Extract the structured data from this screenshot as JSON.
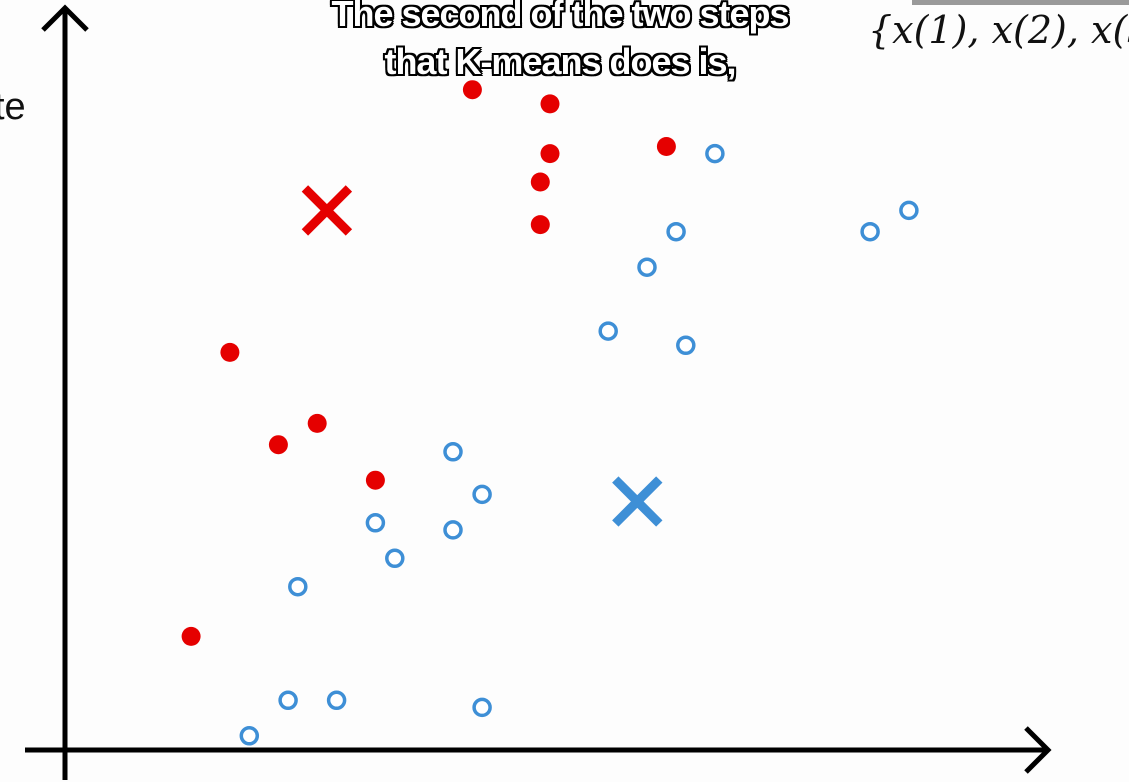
{
  "caption": {
    "line1": "The second of the two steps",
    "line2": "that K-means does is,"
  },
  "axis_label_fragment": "te",
  "formula_fragment": "{x(1), x(2), x(3",
  "colors": {
    "cluster_red": "#e50000",
    "cluster_blue": "#3e8fd6",
    "axis": "#000000"
  },
  "chart_data": {
    "type": "scatter",
    "title": "",
    "xlabel": "",
    "ylabel": "te",
    "xlim": [
      0,
      100
    ],
    "ylim": [
      0,
      100
    ],
    "grid": false,
    "series": [
      {
        "color": "#e50000",
        "marker": "filled-circle",
        "x": [
          42,
          50,
          50,
          49,
          49,
          62,
          17,
          22,
          26,
          32,
          13
        ],
        "y": [
          93,
          91,
          84,
          80,
          74,
          85,
          56,
          43,
          46,
          38,
          16
        ]
      },
      {
        "color": "#3e8fd6",
        "marker": "hollow-circle",
        "x": [
          67,
          63,
          60,
          56,
          64,
          83,
          87,
          40,
          43,
          32,
          34,
          40,
          24,
          23,
          28,
          43,
          19
        ],
        "y": [
          84,
          73,
          68,
          59,
          57,
          73,
          76,
          42,
          36,
          32,
          27,
          31,
          23,
          7,
          7,
          6,
          2
        ]
      }
    ],
    "centroids": [
      {
        "color": "#e50000",
        "marker": "x",
        "x": 27,
        "y": 76
      },
      {
        "color": "#3e8fd6",
        "marker": "x",
        "x": 59,
        "y": 35
      }
    ]
  }
}
